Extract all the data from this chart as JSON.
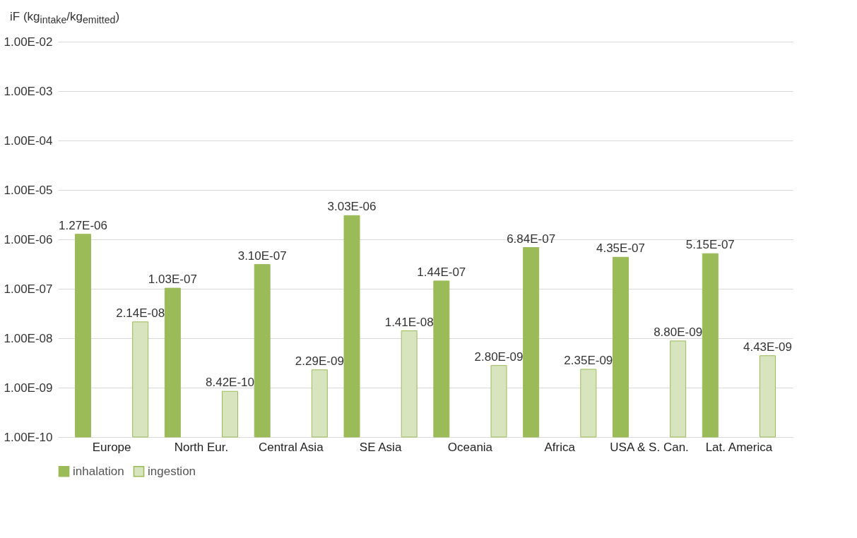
{
  "chart_data": {
    "type": "bar",
    "ylabel": "iF (kg$_{intake}$/kg$_{emitted}$)",
    "categories": [
      "Europe",
      "North Eur.",
      "Central Asia",
      "SE Asia",
      "Oceania",
      "Africa",
      "USA & S. Can.",
      "Lat. America"
    ],
    "series": [
      {
        "name": "inhalation",
        "color": "#9bbb59",
        "values": [
          1.27e-06,
          1.03e-07,
          3.1e-07,
          3.03e-06,
          1.44e-07,
          6.84e-07,
          4.35e-07,
          5.15e-07
        ],
        "value_labels": [
          "1.27E-06",
          "1.03E-07",
          "3.10E-07",
          "3.03E-06",
          "1.44E-07",
          "6.84E-07",
          "4.35E-07",
          "5.15E-07"
        ]
      },
      {
        "name": "ingestion",
        "color": "#d7e4bd",
        "values": [
          2.14e-08,
          8.42e-10,
          2.29e-09,
          1.41e-08,
          2.8e-09,
          2.35e-09,
          8.8e-09,
          4.43e-09
        ],
        "value_labels": [
          "2.14E-08",
          "8.42E-10",
          "2.29E-09",
          "1.41E-08",
          "2.80E-09",
          "2.35E-09",
          "8.80E-09",
          "4.43E-09"
        ]
      }
    ],
    "log": "y",
    "ylim": [
      1e-10,
      0.01
    ],
    "yticks": [
      {
        "value": 1e-10,
        "label": "1.00E-10"
      },
      {
        "value": 1e-09,
        "label": "1.00E-09"
      },
      {
        "value": 1e-08,
        "label": "1.00E-08"
      },
      {
        "value": 1e-07,
        "label": "1.00E-07"
      },
      {
        "value": 1e-06,
        "label": "1.00E-06"
      },
      {
        "value": 1e-05,
        "label": "1.00E-05"
      },
      {
        "value": 0.0001,
        "label": "1.00E-04"
      },
      {
        "value": 0.001,
        "label": "1.00E-03"
      },
      {
        "value": 0.01,
        "label": "1.00E-02"
      }
    ],
    "grid": "y",
    "legend": "bottom"
  }
}
